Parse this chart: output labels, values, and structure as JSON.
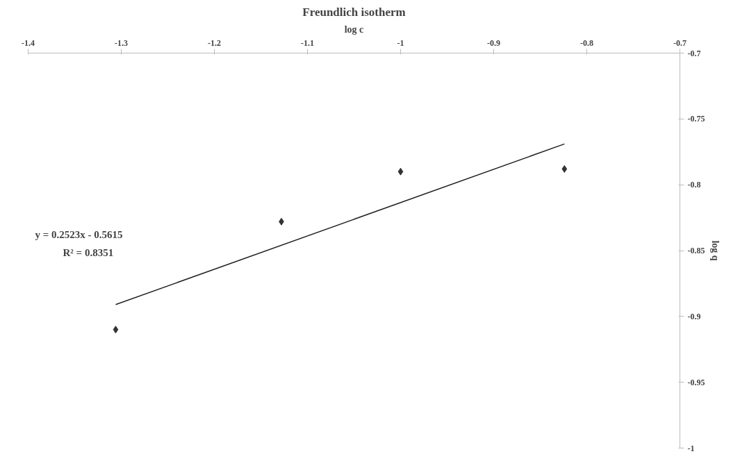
{
  "chart_data": {
    "type": "scatter",
    "title": "Freundlich isotherm",
    "xlabel": "log c",
    "ylabel": "log q",
    "xlim": [
      -1.4,
      -0.7
    ],
    "xticks": [
      -1.4,
      -1.3,
      -1.2,
      -1.1,
      {
        "value": -1.0,
        "label": "-1"
      },
      -0.9,
      -0.8,
      -0.7
    ],
    "ylim": [
      -1.0,
      -0.7
    ],
    "yticks": [
      {
        "value": -1.0,
        "label": "-1"
      },
      -0.95,
      -0.9,
      -0.85,
      -0.8,
      -0.75,
      -0.7
    ],
    "series": [
      {
        "marker": "diamond",
        "color": "#333333",
        "x": [
          -1.306,
          -1.128,
          -1.0,
          -0.824
        ],
        "values": [
          -0.91,
          -0.828,
          -0.79,
          -0.788
        ]
      },
      {
        "type": "line",
        "color": "#222222",
        "x": [
          -1.306,
          -0.824
        ],
        "values": [
          -0.891,
          -0.769
        ]
      }
    ],
    "annotations": [
      "y = 0.2523x - 0.5615",
      "R² = 0.8351"
    ]
  }
}
